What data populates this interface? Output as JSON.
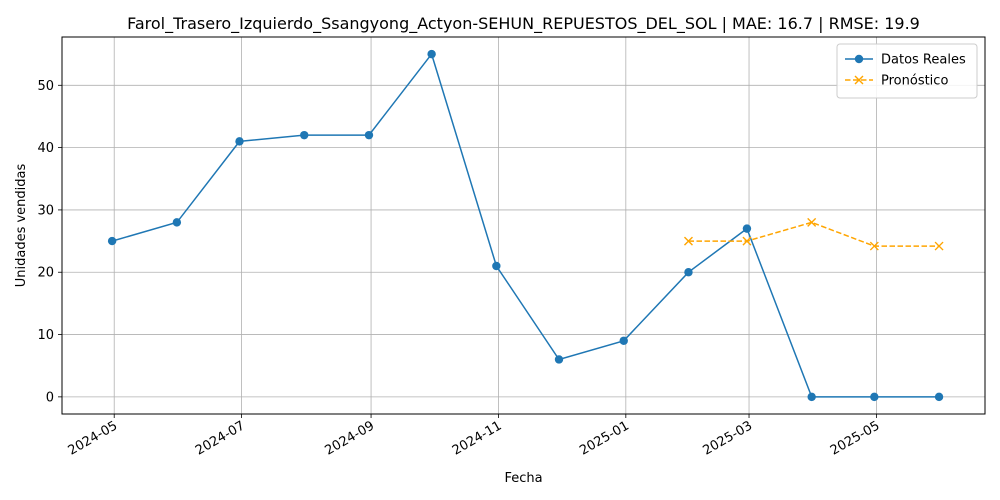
{
  "chart_data": {
    "type": "line",
    "title": "Farol_Trasero_Izquierdo_Ssangyong_Actyon-SEHUN_REPUESTOS_DEL_SOL | MAE: 16.7 | RMSE: 19.9",
    "xlabel": "Fecha",
    "ylabel": "Unidades vendidas",
    "xlim": [
      "2024-04-06",
      "2025-06-22"
    ],
    "ylim": [
      -2.75,
      57.75
    ],
    "grid": true,
    "legend_position": "top-right",
    "x_ticks": [
      "2024-05",
      "2024-07",
      "2024-09",
      "2024-11",
      "2025-01",
      "2025-03",
      "2025-05"
    ],
    "y_ticks": [
      0,
      10,
      20,
      30,
      40,
      50
    ],
    "series": [
      {
        "name": "Datos Reales",
        "style": "solid",
        "marker": "circle",
        "color": "#1f77b4",
        "x": [
          "2024-04-30",
          "2024-05-31",
          "2024-06-30",
          "2024-07-31",
          "2024-08-31",
          "2024-09-30",
          "2024-10-31",
          "2024-11-30",
          "2024-12-31",
          "2025-01-31",
          "2025-02-28",
          "2025-03-31",
          "2025-04-30",
          "2025-05-31"
        ],
        "y": [
          25,
          28,
          41,
          42,
          42,
          55,
          21,
          6,
          9,
          20,
          27,
          0,
          0,
          0
        ]
      },
      {
        "name": "Pronóstico",
        "style": "dashed",
        "marker": "x",
        "color": "#ffa500",
        "x": [
          "2025-01-31",
          "2025-02-28",
          "2025-03-31",
          "2025-04-30",
          "2025-05-31"
        ],
        "y": [
          25,
          25,
          28,
          24.2,
          24.2
        ]
      }
    ]
  }
}
